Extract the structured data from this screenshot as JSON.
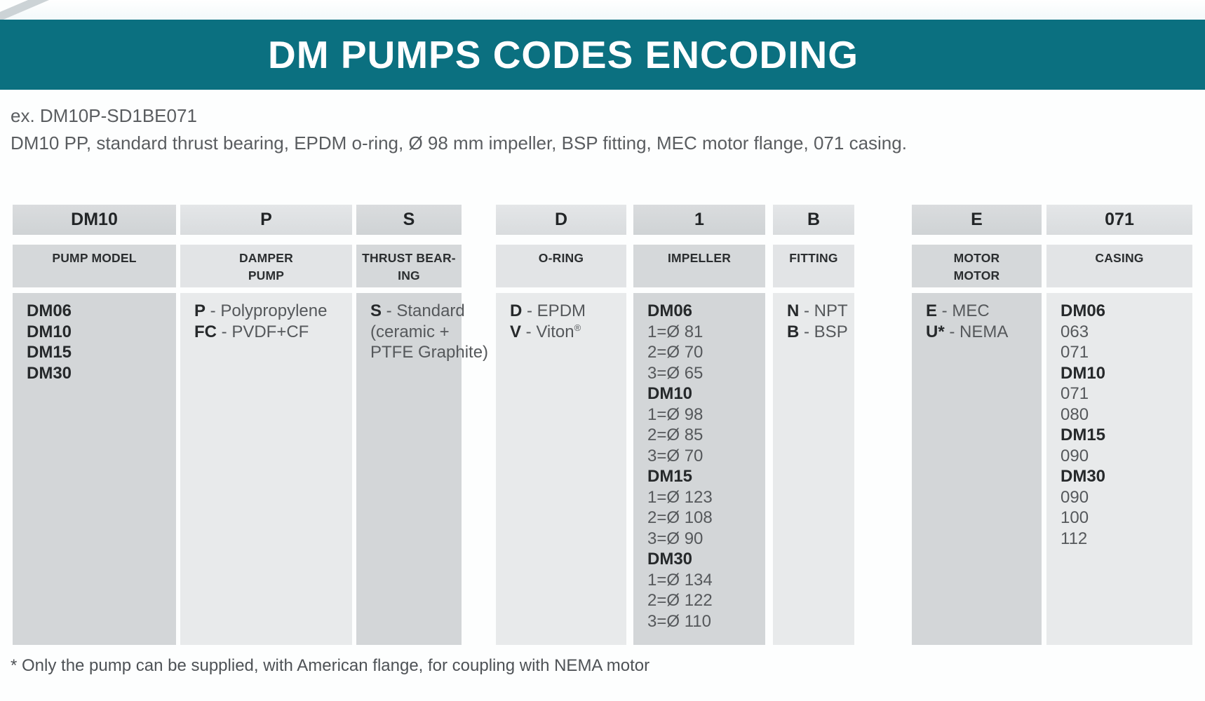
{
  "header": {
    "title": "DM PUMPS CODES ENCODING"
  },
  "example": {
    "code": "ex. DM10P-SD1BE071",
    "description": "DM10 PP, standard thrust bearing, EPDM o-ring, Ø 98 mm impeller, BSP fitting, MEC motor flange, 071 casing."
  },
  "table": {
    "columns": [
      {
        "code": "DM10",
        "label_lines": [
          "PUMP MODEL"
        ],
        "shade": "dark",
        "body_lines": [
          {
            "bold": "DM06"
          },
          {
            "bold": "DM10"
          },
          {
            "bold": "DM15"
          },
          {
            "bold": "DM30"
          }
        ]
      },
      {
        "code": "P",
        "label_lines": [
          "DAMPER",
          "PUMP"
        ],
        "shade": "light",
        "body_lines": [
          {
            "bold": "P",
            "text": " - Polypropylene"
          },
          {
            "bold": "FC",
            "text": " - PVDF+CF"
          }
        ]
      },
      {
        "code": "S",
        "label_lines": [
          "THRUST BEAR-",
          "ING"
        ],
        "shade": "dark",
        "body_lines": [
          {
            "bold": "S",
            "text": " - Standard"
          },
          {
            "text": "(ceramic +"
          },
          {
            "text": "PTFE Graphite)"
          }
        ]
      },
      {
        "code": "D",
        "label_lines": [
          "O-RING"
        ],
        "shade": "light",
        "body_lines": [
          {
            "bold": "D",
            "text": " - EPDM"
          },
          {
            "bold": "V",
            "text": " - Viton",
            "sup": "®"
          }
        ]
      },
      {
        "code": "1",
        "label_lines": [
          "IMPELLER"
        ],
        "shade": "dark",
        "body_lines": [
          {
            "bold": "DM06"
          },
          {
            "text": "1=Ø 81"
          },
          {
            "text": "2=Ø 70"
          },
          {
            "text": "3=Ø 65"
          },
          {
            "bold": "DM10"
          },
          {
            "text": "1=Ø 98"
          },
          {
            "text": "2=Ø 85"
          },
          {
            "text": "3=Ø 70"
          },
          {
            "bold": "DM15"
          },
          {
            "text": "1=Ø 123"
          },
          {
            "text": "2=Ø 108"
          },
          {
            "text": "3=Ø 90"
          },
          {
            "bold": "DM30"
          },
          {
            "text": "1=Ø 134"
          },
          {
            "text": "2=Ø 122"
          },
          {
            "text": "3=Ø 110"
          }
        ]
      },
      {
        "code": "B",
        "label_lines": [
          "FITTING"
        ],
        "shade": "light",
        "body_lines": [
          {
            "bold": "N",
            "text": " - NPT"
          },
          {
            "bold": "B",
            "text": " - BSP"
          }
        ]
      },
      {
        "code": "E",
        "label_lines": [
          "MOTOR",
          "MOTOR"
        ],
        "shade": "dark",
        "body_lines": [
          {
            "bold": "E",
            "text": " - MEC"
          },
          {
            "bold": "U*",
            "text": " - NEMA"
          }
        ]
      },
      {
        "code": "071",
        "label_lines": [
          "CASING"
        ],
        "shade": "light",
        "body_lines": [
          {
            "bold": "DM06"
          },
          {
            "text": "063"
          },
          {
            "text": "071"
          },
          {
            "bold": "DM10"
          },
          {
            "text": "071"
          },
          {
            "text": "080"
          },
          {
            "bold": "DM15"
          },
          {
            "text": "090"
          },
          {
            "bold": "DM30"
          },
          {
            "text": "090"
          },
          {
            "text": "100"
          },
          {
            "text": "112"
          }
        ]
      }
    ]
  },
  "footnote": "* Only the pump can be supplied, with American flange, for coupling with NEMA motor",
  "colors": {
    "accent_teal": "#0b7080",
    "column_dark": "#d3d6d8",
    "column_light": "#e8eaeb",
    "title_text": "#ffffff",
    "body_text": "#55585b",
    "bold_text": "#26292b"
  }
}
